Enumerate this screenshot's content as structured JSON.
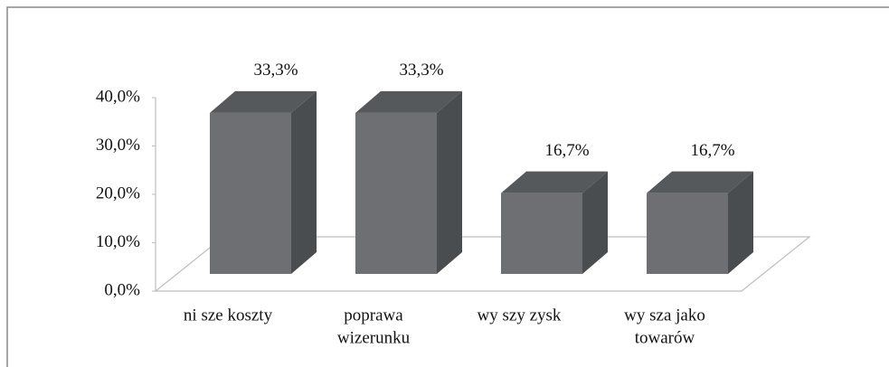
{
  "chart_data": {
    "type": "bar3d",
    "categories": [
      [
        "ni  sze koszty"
      ],
      [
        "poprawa",
        "wizerunku"
      ],
      [
        "wy  szy zysk"
      ],
      [
        "wy  sza jako",
        "towarów"
      ]
    ],
    "values": [
      33.3,
      33.3,
      16.7,
      16.7
    ],
    "value_labels": [
      "33,3%",
      "33,3%",
      "16,7%",
      "16,7%"
    ],
    "color": "#6d6f72",
    "ylim": [
      0,
      40
    ],
    "yticks": [
      {
        "value": 0,
        "label": "0,0%"
      },
      {
        "value": 10,
        "label": "10,0%"
      },
      {
        "value": 20,
        "label": "20,0%"
      },
      {
        "value": 30,
        "label": "30,0%"
      },
      {
        "value": 40,
        "label": "40,0%"
      }
    ]
  }
}
